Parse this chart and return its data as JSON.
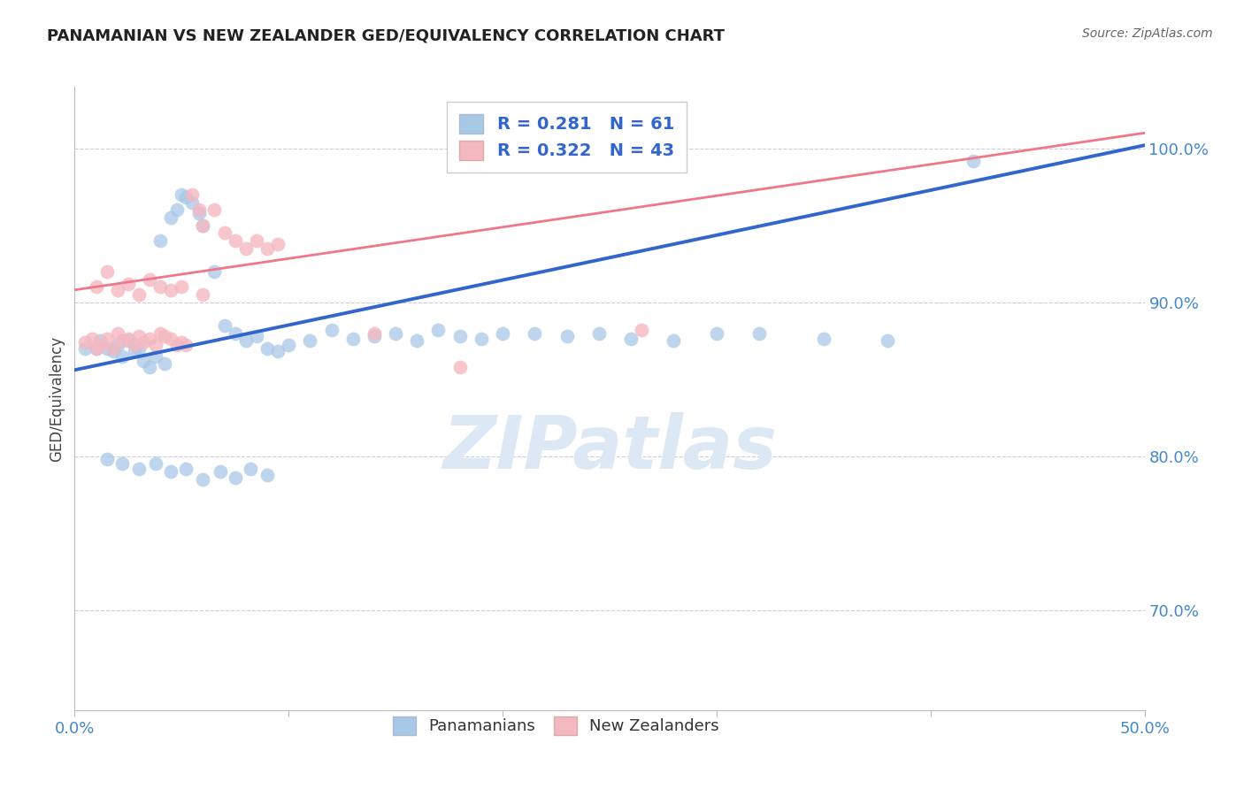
{
  "title": "PANAMANIAN VS NEW ZEALANDER GED/EQUIVALENCY CORRELATION CHART",
  "source": "Source: ZipAtlas.com",
  "ylabel_label": "GED/Equivalency",
  "x_min": 0.0,
  "x_max": 0.5,
  "y_min": 0.635,
  "y_max": 1.04,
  "y_ticks": [
    1.0,
    0.9,
    0.8,
    0.7
  ],
  "y_tick_labels": [
    "100.0%",
    "90.0%",
    "80.0%",
    "70.0%"
  ],
  "x_ticks": [
    0.0,
    0.1,
    0.2,
    0.3,
    0.4,
    0.5
  ],
  "x_tick_labels": [
    "0.0%",
    "",
    "",
    "",
    "",
    "50.0%"
  ],
  "blue_R": 0.281,
  "blue_N": 61,
  "pink_R": 0.322,
  "pink_N": 43,
  "blue_color": "#a8c8e8",
  "pink_color": "#f4b8c0",
  "blue_line_color": "#3366cc",
  "pink_line_color": "#ee7788",
  "legend_text_color": "#3366cc",
  "watermark_color": "#dde8f5",
  "blue_scatter_x": [
    0.005,
    0.01,
    0.012,
    0.015,
    0.018,
    0.02,
    0.022,
    0.025,
    0.028,
    0.03,
    0.032,
    0.035,
    0.038,
    0.04,
    0.042,
    0.045,
    0.048,
    0.05,
    0.052,
    0.055,
    0.058,
    0.06,
    0.065,
    0.07,
    0.075,
    0.08,
    0.085,
    0.09,
    0.095,
    0.1,
    0.11,
    0.12,
    0.13,
    0.14,
    0.15,
    0.16,
    0.17,
    0.18,
    0.19,
    0.2,
    0.215,
    0.23,
    0.245,
    0.26,
    0.28,
    0.3,
    0.32,
    0.35,
    0.38,
    0.42,
    0.015,
    0.022,
    0.03,
    0.038,
    0.045,
    0.052,
    0.06,
    0.068,
    0.075,
    0.082,
    0.09
  ],
  "blue_scatter_y": [
    0.87,
    0.87,
    0.875,
    0.87,
    0.868,
    0.872,
    0.865,
    0.875,
    0.868,
    0.87,
    0.862,
    0.858,
    0.865,
    0.94,
    0.86,
    0.955,
    0.96,
    0.97,
    0.968,
    0.965,
    0.958,
    0.95,
    0.92,
    0.885,
    0.88,
    0.875,
    0.878,
    0.87,
    0.868,
    0.872,
    0.875,
    0.882,
    0.876,
    0.878,
    0.88,
    0.875,
    0.882,
    0.878,
    0.876,
    0.88,
    0.88,
    0.878,
    0.88,
    0.876,
    0.875,
    0.88,
    0.88,
    0.876,
    0.875,
    0.992,
    0.798,
    0.795,
    0.792,
    0.795,
    0.79,
    0.792,
    0.785,
    0.79,
    0.786,
    0.792,
    0.788
  ],
  "pink_scatter_x": [
    0.005,
    0.008,
    0.01,
    0.012,
    0.015,
    0.018,
    0.02,
    0.022,
    0.025,
    0.028,
    0.03,
    0.032,
    0.035,
    0.038,
    0.04,
    0.042,
    0.045,
    0.048,
    0.05,
    0.052,
    0.055,
    0.058,
    0.06,
    0.065,
    0.07,
    0.075,
    0.08,
    0.085,
    0.09,
    0.095,
    0.01,
    0.015,
    0.02,
    0.025,
    0.03,
    0.035,
    0.04,
    0.045,
    0.05,
    0.06,
    0.14,
    0.18,
    0.265
  ],
  "pink_scatter_y": [
    0.874,
    0.876,
    0.87,
    0.872,
    0.876,
    0.87,
    0.88,
    0.875,
    0.876,
    0.872,
    0.878,
    0.874,
    0.876,
    0.872,
    0.88,
    0.878,
    0.876,
    0.872,
    0.874,
    0.872,
    0.97,
    0.96,
    0.95,
    0.96,
    0.945,
    0.94,
    0.935,
    0.94,
    0.935,
    0.938,
    0.91,
    0.92,
    0.908,
    0.912,
    0.905,
    0.915,
    0.91,
    0.908,
    0.91,
    0.905,
    0.88,
    0.858,
    0.882
  ],
  "blue_trendline": [
    0.856,
    1.002
  ],
  "pink_trendline": [
    0.908,
    1.01
  ]
}
